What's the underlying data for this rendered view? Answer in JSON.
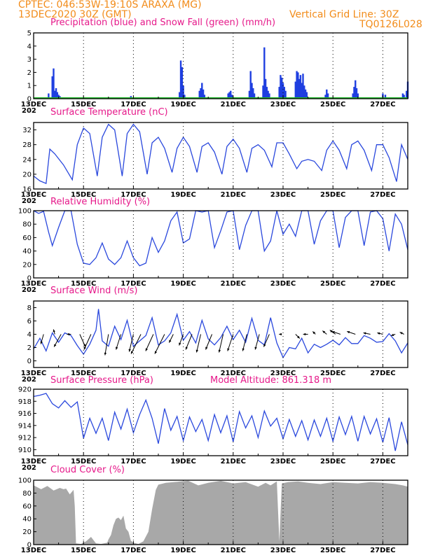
{
  "header": {
    "line1_left": "CPTEC:   046:53W-19:10S   ARAXA (MG)",
    "line2_left": "13DEC2020 30Z (GMT)",
    "line2_right": "Vertical Grid Line: 30Z",
    "line3_right": "TQ0126L028"
  },
  "colors": {
    "precip": "#1f3fe0",
    "snow": "#1fb82a",
    "line": "#2a48dd",
    "cloud": "#a8a8a8",
    "title": "#e6198a",
    "header": "#f28c1a"
  },
  "chart_data": [
    {
      "id": "precip",
      "type": "bar",
      "title": "Precipitation (blue) and Snow Fall (green) (mm/h)",
      "ylim": [
        0,
        5
      ],
      "yticks": [
        "0",
        "1",
        "2",
        "3",
        "4",
        "5"
      ],
      "x_range_days": [
        13,
        28
      ],
      "date_labels": [
        "13DEC",
        "15DEC",
        "17DEC",
        "19DEC",
        "21DEC",
        "23DEC",
        "25DEC",
        "27DEC"
      ],
      "x_fragment": "202",
      "series": [
        {
          "name": "Precipitation",
          "color": "#1f3fe0",
          "points": [
            [
              13.6,
              0.4
            ],
            [
              13.75,
              1.7
            ],
            [
              13.8,
              2.3
            ],
            [
              13.85,
              0.6
            ],
            [
              13.9,
              0.8
            ],
            [
              13.95,
              0.5
            ],
            [
              14.0,
              0.3
            ],
            [
              14.05,
              0.2
            ],
            [
              15.95,
              0.1
            ],
            [
              16.4,
              0.1
            ],
            [
              16.9,
              0.2
            ],
            [
              18.85,
              0.5
            ],
            [
              18.9,
              2.9
            ],
            [
              18.95,
              2.4
            ],
            [
              19.0,
              1.0
            ],
            [
              19.05,
              0.3
            ],
            [
              19.65,
              0.6
            ],
            [
              19.7,
              0.8
            ],
            [
              19.75,
              1.2
            ],
            [
              19.8,
              0.7
            ],
            [
              19.85,
              0.3
            ],
            [
              20.8,
              0.4
            ],
            [
              20.85,
              0.5
            ],
            [
              20.9,
              0.6
            ],
            [
              20.95,
              0.3
            ],
            [
              21.65,
              0.6
            ],
            [
              21.7,
              2.1
            ],
            [
              21.75,
              1.2
            ],
            [
              21.8,
              0.8
            ],
            [
              21.85,
              0.4
            ],
            [
              22.2,
              1.0
            ],
            [
              22.25,
              3.9
            ],
            [
              22.3,
              1.5
            ],
            [
              22.35,
              0.9
            ],
            [
              22.4,
              0.6
            ],
            [
              22.45,
              0.4
            ],
            [
              22.85,
              0.9
            ],
            [
              22.9,
              1.8
            ],
            [
              22.95,
              1.6
            ],
            [
              23.0,
              1.2
            ],
            [
              23.05,
              0.9
            ],
            [
              23.1,
              0.6
            ],
            [
              23.5,
              1.3
            ],
            [
              23.55,
              2.1
            ],
            [
              23.6,
              2.0
            ],
            [
              23.65,
              1.5
            ],
            [
              23.7,
              1.8
            ],
            [
              23.75,
              1.2
            ],
            [
              23.8,
              1.9
            ],
            [
              23.85,
              1.0
            ],
            [
              23.9,
              0.7
            ],
            [
              23.95,
              0.5
            ],
            [
              24.7,
              0.3
            ],
            [
              24.75,
              0.7
            ],
            [
              24.8,
              0.4
            ],
            [
              25.8,
              0.4
            ],
            [
              25.85,
              0.9
            ],
            [
              25.9,
              1.4
            ],
            [
              25.95,
              0.8
            ],
            [
              26.0,
              0.4
            ],
            [
              27.0,
              0.4
            ],
            [
              27.1,
              0.3
            ],
            [
              27.8,
              0.4
            ],
            [
              27.85,
              0.3
            ],
            [
              27.95,
              0.6
            ],
            [
              28.0,
              1.3
            ]
          ]
        },
        {
          "name": "Snow Fall",
          "color": "#1fb82a",
          "points": []
        }
      ]
    },
    {
      "id": "temp",
      "type": "line",
      "title": "Surface Temperature (nC)",
      "ylim": [
        16,
        34
      ],
      "yticks": [
        "16",
        "20",
        "24",
        "28",
        "32"
      ],
      "date_labels": [
        "13DEC",
        "15DEC",
        "17DEC",
        "19DEC",
        "21DEC",
        "23DEC",
        "25DEC",
        "27DEC"
      ],
      "x_fragment": "202",
      "x": [
        13.0,
        13.25,
        13.5,
        13.65,
        13.85,
        14.2,
        14.55,
        14.75,
        15.0,
        15.25,
        15.55,
        15.75,
        16.0,
        16.25,
        16.55,
        16.75,
        17.0,
        17.25,
        17.55,
        17.75,
        18.0,
        18.25,
        18.55,
        18.75,
        19.0,
        19.25,
        19.55,
        19.75,
        20.0,
        20.25,
        20.55,
        20.75,
        21.0,
        21.25,
        21.55,
        21.75,
        22.0,
        22.25,
        22.55,
        22.75,
        23.0,
        23.25,
        23.55,
        23.75,
        24.0,
        24.25,
        24.55,
        24.75,
        25.0,
        25.25,
        25.55,
        25.75,
        26.0,
        26.25,
        26.55,
        26.75,
        27.0,
        27.25,
        27.55,
        27.75,
        28.0
      ],
      "y": [
        19.5,
        18.2,
        17.5,
        26.8,
        25.5,
        22.5,
        18.5,
        28.0,
        32.5,
        31.0,
        19.5,
        30.0,
        33.5,
        32.0,
        19.5,
        31.0,
        33.5,
        31.5,
        20.0,
        28.5,
        30.0,
        27.0,
        20.5,
        27.0,
        30.0,
        27.5,
        20.5,
        27.5,
        28.5,
        26.0,
        20.0,
        27.5,
        29.5,
        27.0,
        20.5,
        27.0,
        28.0,
        26.5,
        22.0,
        28.5,
        28.5,
        25.5,
        21.5,
        23.5,
        24.0,
        23.5,
        21.0,
        26.5,
        29.0,
        26.5,
        21.5,
        28.0,
        29.0,
        26.5,
        21.0,
        28.0,
        28.0,
        24.5,
        18.0,
        28.0,
        24.0
      ]
    },
    {
      "id": "rh",
      "type": "line",
      "title": "Relative Humidity (%)",
      "ylim": [
        0,
        100
      ],
      "yticks": [
        "0",
        "20",
        "40",
        "60",
        "80",
        "100"
      ],
      "date_labels": [
        "13DEC",
        "15DEC",
        "17DEC",
        "19DEC",
        "21DEC",
        "23DEC",
        "25DEC",
        "27DEC"
      ],
      "x_fragment": "202",
      "x": [
        13.0,
        13.2,
        13.4,
        13.6,
        13.75,
        14.0,
        14.25,
        14.5,
        14.75,
        15.0,
        15.25,
        15.5,
        15.75,
        16.0,
        16.25,
        16.5,
        16.75,
        17.0,
        17.25,
        17.5,
        17.75,
        18.0,
        18.25,
        18.5,
        18.75,
        19.0,
        19.25,
        19.5,
        19.75,
        20.0,
        20.25,
        20.5,
        20.75,
        21.0,
        21.25,
        21.5,
        21.75,
        22.0,
        22.25,
        22.5,
        22.75,
        23.0,
        23.25,
        23.5,
        23.75,
        24.0,
        24.25,
        24.5,
        24.75,
        25.0,
        25.25,
        25.5,
        25.75,
        26.0,
        26.25,
        26.5,
        26.75,
        27.0,
        27.25,
        27.5,
        27.75,
        28.0
      ],
      "y": [
        100,
        96,
        99,
        68,
        48,
        75,
        100,
        100,
        50,
        22,
        20,
        30,
        52,
        28,
        20,
        30,
        55,
        30,
        18,
        22,
        60,
        38,
        55,
        85,
        98,
        52,
        58,
        100,
        98,
        100,
        45,
        70,
        98,
        100,
        42,
        78,
        100,
        100,
        40,
        55,
        100,
        65,
        80,
        62,
        100,
        100,
        50,
        85,
        100,
        100,
        45,
        90,
        100,
        100,
        48,
        98,
        100,
        88,
        40,
        95,
        80,
        42
      ]
    },
    {
      "id": "wind",
      "type": "line",
      "title": "Surface Wind (m/s)",
      "ylim": [
        -1,
        9
      ],
      "yticks": [
        "0",
        "2",
        "4",
        "6",
        "8"
      ],
      "date_labels": [
        "13DEC",
        "15DEC",
        "17DEC",
        "19DEC",
        "21DEC",
        "23DEC",
        "25DEC",
        "27DEC"
      ],
      "x_fragment": "202",
      "x": [
        13.0,
        13.25,
        13.5,
        13.75,
        14.0,
        14.25,
        14.5,
        14.75,
        15.0,
        15.25,
        15.5,
        15.6,
        15.75,
        16.0,
        16.25,
        16.5,
        16.75,
        17.0,
        17.25,
        17.5,
        17.75,
        18.0,
        18.25,
        18.5,
        18.75,
        19.0,
        19.25,
        19.5,
        19.75,
        20.0,
        20.25,
        20.5,
        20.75,
        21.0,
        21.25,
        21.5,
        21.75,
        22.0,
        22.25,
        22.5,
        22.75,
        23.0,
        23.25,
        23.5,
        23.75,
        24.0,
        24.25,
        24.5,
        24.75,
        25.0,
        25.25,
        25.5,
        25.75,
        26.0,
        26.25,
        26.5,
        26.75,
        27.0,
        27.25,
        27.5,
        27.75,
        28.0
      ],
      "y": [
        1.8,
        3.4,
        1.5,
        4.2,
        2.8,
        4.2,
        3.8,
        2.3,
        1.0,
        2.5,
        4.6,
        7.8,
        3.0,
        2.2,
        5.2,
        3.2,
        6.1,
        2.2,
        3.0,
        3.8,
        6.5,
        2.4,
        3.0,
        4.2,
        7.0,
        3.1,
        4.4,
        2.7,
        6.1,
        3.3,
        2.4,
        3.5,
        5.2,
        3.2,
        4.6,
        2.8,
        6.4,
        3.1,
        2.4,
        6.5,
        2.7,
        0.5,
        2.0,
        1.8,
        3.4,
        1.2,
        2.5,
        2.0,
        2.5,
        3.1,
        2.4,
        3.5,
        2.6,
        2.6,
        3.8,
        3.4,
        2.8,
        2.9,
        4.1,
        3.0,
        1.2,
        2.7
      ]
    },
    {
      "id": "press",
      "type": "line",
      "title": "Surface Pressure (hPa)",
      "annotation": "Model Altitude: 861.318 m",
      "ylim": [
        909,
        920
      ],
      "yticks": [
        "910",
        "912",
        "914",
        "916",
        "918",
        "920"
      ],
      "date_labels": [
        "13DEC",
        "15DEC",
        "17DEC",
        "19DEC",
        "21DEC",
        "23DEC",
        "25DEC",
        "27DEC"
      ],
      "x_fragment": "202",
      "x": [
        13.0,
        13.25,
        13.5,
        13.75,
        14.0,
        14.25,
        14.5,
        14.75,
        15.0,
        15.25,
        15.5,
        15.75,
        16.0,
        16.25,
        16.5,
        16.75,
        17.0,
        17.25,
        17.5,
        17.75,
        18.0,
        18.25,
        18.5,
        18.75,
        19.0,
        19.25,
        19.5,
        19.75,
        20.0,
        20.25,
        20.5,
        20.75,
        21.0,
        21.25,
        21.5,
        21.75,
        22.0,
        22.25,
        22.5,
        22.75,
        23.0,
        23.25,
        23.5,
        23.75,
        24.0,
        24.25,
        24.5,
        24.75,
        25.0,
        25.25,
        25.5,
        25.75,
        26.0,
        26.25,
        26.5,
        26.75,
        27.0,
        27.25,
        27.5,
        27.75,
        28.0
      ],
      "y": [
        918.8,
        919.0,
        919.3,
        917.6,
        916.9,
        918.1,
        917.0,
        917.9,
        911.9,
        915.2,
        912.7,
        915.2,
        911.5,
        916.2,
        913.4,
        916.7,
        912.8,
        915.8,
        918.2,
        915.2,
        911.0,
        916.8,
        913.2,
        915.5,
        911.5,
        915.4,
        913.0,
        915.0,
        911.5,
        915.8,
        912.8,
        915.6,
        911.3,
        916.3,
        913.6,
        915.6,
        912.0,
        916.4,
        913.9,
        915.2,
        911.8,
        915.0,
        912.2,
        914.8,
        911.6,
        914.9,
        912.2,
        915.2,
        911.4,
        915.4,
        912.5,
        915.5,
        911.4,
        915.5,
        912.6,
        915.1,
        911.2,
        915.3,
        909.8,
        914.6,
        910.8
      ]
    },
    {
      "id": "cloud",
      "type": "area",
      "title": "Cloud Cover (%)",
      "ylim": [
        0,
        100
      ],
      "yticks": [
        "0",
        "20",
        "40",
        "60",
        "80",
        "100"
      ],
      "date_labels": [
        "13DEC",
        "15DEC",
        "17DEC",
        "19DEC",
        "21DEC",
        "23DEC",
        "25DEC",
        "27DEC"
      ],
      "x": [
        13.0,
        13.3,
        13.55,
        13.8,
        14.05,
        14.2,
        14.3,
        14.45,
        14.6,
        14.65,
        14.7,
        14.9,
        15.0,
        15.1,
        15.3,
        15.5,
        15.7,
        15.95,
        16.0,
        16.1,
        16.2,
        16.3,
        16.4,
        16.5,
        16.6,
        16.7,
        16.8,
        16.9,
        17.0,
        17.2,
        17.4,
        17.6,
        17.75,
        17.9,
        18.0,
        18.3,
        18.6,
        18.9,
        19.2,
        19.6,
        20.0,
        20.5,
        21.0,
        21.5,
        22.0,
        22.3,
        22.5,
        22.75,
        22.85,
        22.95,
        23.2,
        23.6,
        24.0,
        24.5,
        25.0,
        25.5,
        26.0,
        26.5,
        27.0,
        27.5,
        27.8,
        28.0
      ],
      "y": [
        92,
        86,
        91,
        84,
        88,
        86,
        87,
        78,
        85,
        60,
        2,
        1,
        3,
        5,
        12,
        2,
        1,
        3,
        8,
        15,
        30,
        40,
        42,
        38,
        45,
        25,
        20,
        6,
        3,
        1,
        5,
        20,
        55,
        85,
        93,
        96,
        97,
        98,
        99,
        92,
        96,
        99,
        95,
        97,
        90,
        96,
        92,
        98,
        5,
        95,
        97,
        98,
        96,
        94,
        97,
        96,
        95,
        97,
        96,
        94,
        92,
        90
      ]
    }
  ],
  "wind_arrows": [
    {
      "x": 13.4,
      "dx": -4,
      "dy": 14
    },
    {
      "x": 13.85,
      "dx": -2,
      "dy": -7
    },
    {
      "x": 14.1,
      "dx": -10,
      "dy": 18
    },
    {
      "x": 14.5,
      "dx": -6,
      "dy": 0
    },
    {
      "x": 14.85,
      "dx": 8,
      "dy": 18
    },
    {
      "x": 15.3,
      "dx": -10,
      "dy": 22
    },
    {
      "x": 16.0,
      "dx": -5,
      "dy": 30
    },
    {
      "x": 16.5,
      "dx": -7,
      "dy": 22
    },
    {
      "x": 17.0,
      "dx": -6,
      "dy": 25
    },
    {
      "x": 17.3,
      "dx": -14,
      "dy": 28
    },
    {
      "x": 17.8,
      "dx": -11,
      "dy": 24
    },
    {
      "x": 18.25,
      "dx": -14,
      "dy": 28
    },
    {
      "x": 18.6,
      "dx": -6,
      "dy": 12
    },
    {
      "x": 19.0,
      "dx": -6,
      "dy": 16
    },
    {
      "x": 19.35,
      "dx": -9,
      "dy": 22
    },
    {
      "x": 19.7,
      "dx": -6,
      "dy": 26
    },
    {
      "x": 20.15,
      "dx": -9,
      "dy": 22
    },
    {
      "x": 20.6,
      "dx": -6,
      "dy": 26
    },
    {
      "x": 21.0,
      "dx": -8,
      "dy": 24
    },
    {
      "x": 21.55,
      "dx": -6,
      "dy": 24
    },
    {
      "x": 22.05,
      "dx": -6,
      "dy": 22
    },
    {
      "x": 22.45,
      "dx": -8,
      "dy": 18
    },
    {
      "x": 22.95,
      "dx": -4,
      "dy": 0
    },
    {
      "x": 23.5,
      "dx": 6,
      "dy": 6
    },
    {
      "x": 24.0,
      "dx": -7,
      "dy": 0
    },
    {
      "x": 24.3,
      "dx": -4,
      "dy": -4
    },
    {
      "x": 24.75,
      "dx": -6,
      "dy": -5
    },
    {
      "x": 25.1,
      "dx": -8,
      "dy": -6
    },
    {
      "x": 25.3,
      "dx": -12,
      "dy": -4
    },
    {
      "x": 25.9,
      "dx": -12,
      "dy": -4
    },
    {
      "x": 26.5,
      "dx": -10,
      "dy": -2
    },
    {
      "x": 27.0,
      "dx": -8,
      "dy": -2
    },
    {
      "x": 27.5,
      "dx": -6,
      "dy": 2
    },
    {
      "x": 27.85,
      "dx": -6,
      "dy": -3
    }
  ]
}
